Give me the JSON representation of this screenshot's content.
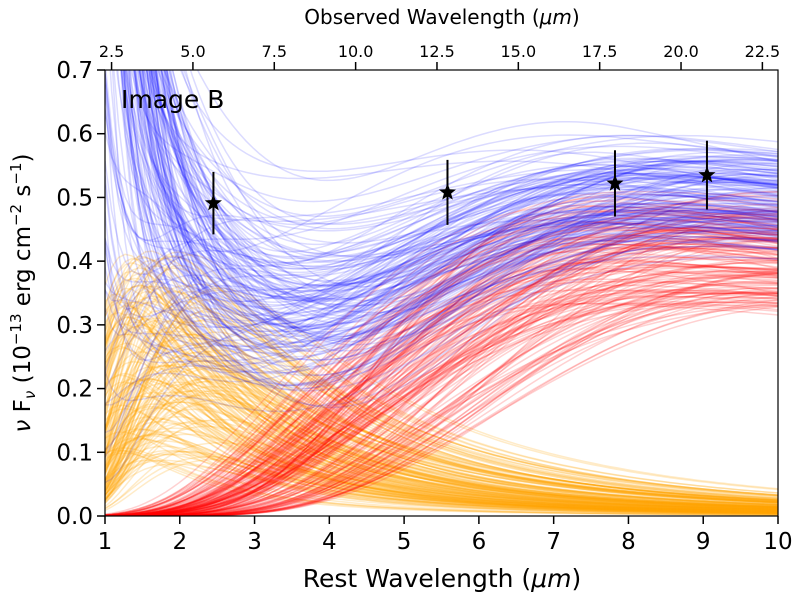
{
  "chart_data": {
    "type": "line",
    "annotation": "Image B",
    "xlabel": "Rest Wavelength (",
    "xlabel_unit": "μm",
    "xlabel_close": ")",
    "top_xlabel": "Observed Wavelength (",
    "top_xlabel_unit": "μm",
    "top_xlabel_close": ")",
    "ylabel_nu": "ν",
    "ylabel_F": " F",
    "ylabel_F_sub": "ν",
    "ylabel_mid": " (10",
    "ylabel_exp": "−13",
    "ylabel_cgs": " erg cm",
    "ylabel_exp2": "−2",
    "ylabel_s": " s",
    "ylabel_exp3": "−1",
    "ylabel_close": ")",
    "xlim": [
      1,
      10
    ],
    "ylim": [
      0.0,
      0.7
    ],
    "x_ticks": [
      "1",
      "2",
      "3",
      "4",
      "5",
      "6",
      "7",
      "8",
      "9",
      "10"
    ],
    "y_ticks": [
      "0.0",
      "0.1",
      "0.2",
      "0.3",
      "0.4",
      "0.5",
      "0.6",
      "0.7"
    ],
    "top_axis_ratio": 2.298,
    "top_ticks": [
      "2.5",
      "5.0",
      "7.5",
      "10.0",
      "12.5",
      "15.0",
      "17.5",
      "20.0",
      "22.5"
    ],
    "grid": false,
    "series_colors": {
      "total": "#0000ff",
      "hot": "#ffa500",
      "warm": "#ff0000",
      "marker": "#000000"
    },
    "model_families": [
      {
        "component": "total",
        "color": "#0000ff",
        "draws": 160
      },
      {
        "component": "hot",
        "color": "#ffa500",
        "draws": 180
      },
      {
        "component": "warm",
        "color": "#ff0000",
        "draws": 160
      }
    ],
    "observations": [
      {
        "x": 2.45,
        "y": 0.491,
        "yerr": 0.049
      },
      {
        "x": 5.58,
        "y": 0.508,
        "yerr": 0.051
      },
      {
        "x": 7.82,
        "y": 0.522,
        "yerr": 0.052
      },
      {
        "x": 9.05,
        "y": 0.535,
        "yerr": 0.054
      }
    ]
  }
}
